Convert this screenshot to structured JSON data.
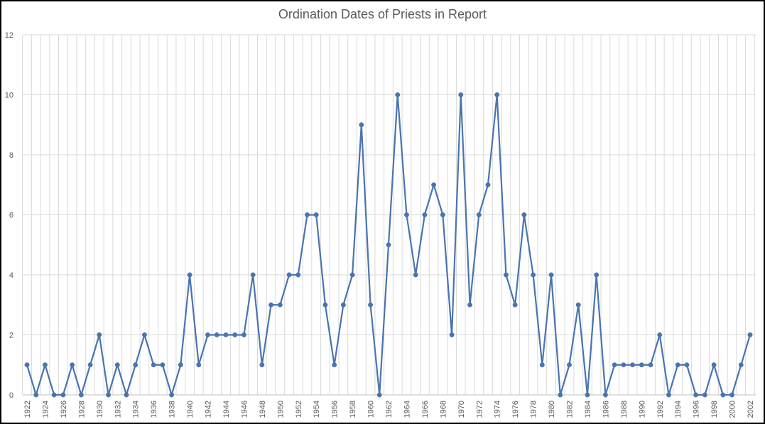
{
  "chart_data": {
    "type": "line",
    "title": "Ordination Dates of Priests in Report",
    "xlabel": "",
    "ylabel": "",
    "ylim": [
      0,
      12
    ],
    "yticks": [
      0,
      2,
      4,
      6,
      8,
      10,
      12
    ],
    "grid": true,
    "legend": "none",
    "x": [
      1922,
      1923,
      1924,
      1925,
      1926,
      1927,
      1928,
      1929,
      1930,
      1931,
      1932,
      1933,
      1934,
      1935,
      1936,
      1937,
      1938,
      1939,
      1940,
      1941,
      1942,
      1943,
      1944,
      1945,
      1946,
      1947,
      1948,
      1949,
      1950,
      1951,
      1952,
      1953,
      1954,
      1955,
      1956,
      1957,
      1958,
      1959,
      1960,
      1961,
      1962,
      1963,
      1964,
      1965,
      1966,
      1967,
      1968,
      1969,
      1970,
      1971,
      1972,
      1973,
      1974,
      1975,
      1976,
      1977,
      1978,
      1979,
      1980,
      1981,
      1982,
      1983,
      1984,
      1985,
      1986,
      1987,
      1988,
      1989,
      1990,
      1991,
      1992,
      1993,
      1994,
      1995,
      1996,
      1997,
      1998,
      1999,
      2000,
      2001,
      2002
    ],
    "x_tick_labels": [
      "1922",
      "1924",
      "1926",
      "1928",
      "1930",
      "1932",
      "1934",
      "1936",
      "1938",
      "1940",
      "1942",
      "1944",
      "1946",
      "1948",
      "1950",
      "1952",
      "1954",
      "1956",
      "1958",
      "1960",
      "1962",
      "1964",
      "1966",
      "1968",
      "1970",
      "1972",
      "1974",
      "1976",
      "1978",
      "1980",
      "1982",
      "1984",
      "1986",
      "1988",
      "1990",
      "1992",
      "1994",
      "1996",
      "1998",
      "2000",
      "2002"
    ],
    "series": [
      {
        "values": [
          1,
          0,
          1,
          0,
          0,
          1,
          0,
          1,
          2,
          0,
          1,
          0,
          1,
          2,
          1,
          1,
          0,
          1,
          4,
          1,
          2,
          2,
          2,
          2,
          2,
          4,
          1,
          3,
          3,
          4,
          4,
          6,
          6,
          3,
          1,
          3,
          4,
          9,
          3,
          0,
          5,
          10,
          6,
          4,
          6,
          7,
          6,
          2,
          10,
          3,
          6,
          7,
          10,
          4,
          3,
          6,
          4,
          1,
          4,
          0,
          1,
          3,
          0,
          4,
          0,
          1,
          1,
          1,
          1,
          1,
          2,
          0,
          1,
          1,
          0,
          0,
          1,
          0,
          0,
          1,
          2
        ]
      }
    ],
    "colors": {
      "line": "#4a74b0",
      "grid": "#d9d9d9",
      "axis": "#bfbfbf",
      "text": "#595959",
      "frame": "#000000"
    }
  }
}
